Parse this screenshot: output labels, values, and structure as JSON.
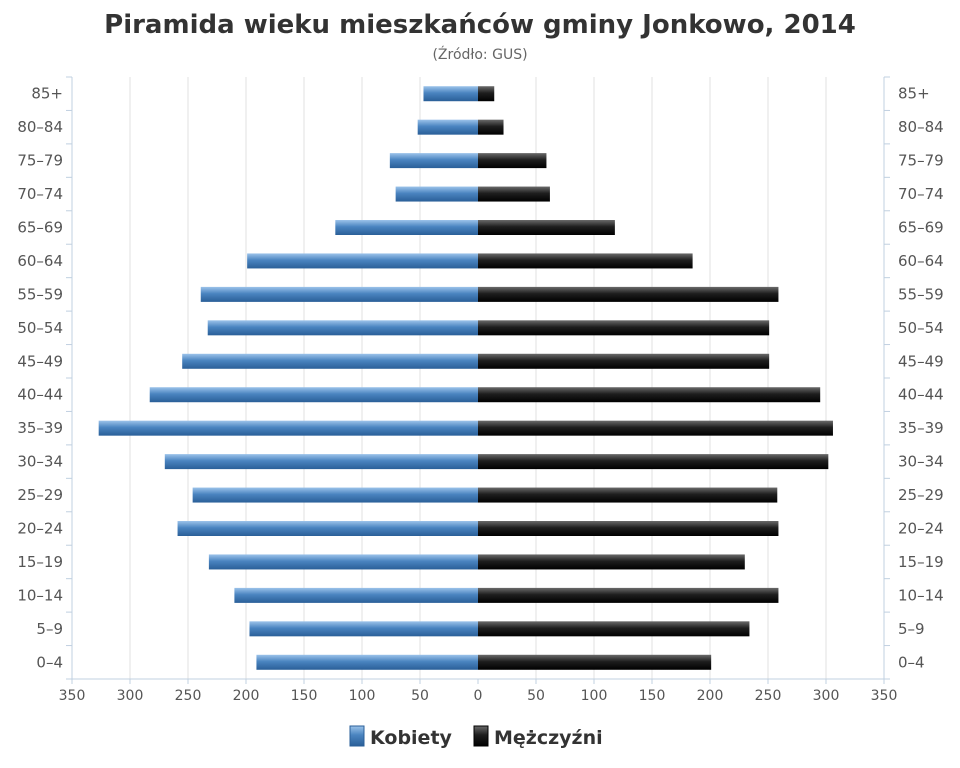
{
  "chart_data": {
    "type": "bar",
    "orientation": "horizontal-population-pyramid",
    "title": "Piramida wieku mieszkańców gminy Jonkowo, 2014",
    "subtitle": "(Źródło: GUS)",
    "categories": [
      "0–4",
      "5–9",
      "10–14",
      "15–19",
      "20–24",
      "25–29",
      "30–34",
      "35–39",
      "40–44",
      "45–49",
      "50–54",
      "55–59",
      "60–64",
      "65–69",
      "70–74",
      "75–79",
      "80–84",
      "85+"
    ],
    "series": [
      {
        "name": "Kobiety",
        "side": "left",
        "color": "#4a84c0",
        "values": [
          191,
          197,
          210,
          232,
          259,
          246,
          270,
          327,
          283,
          255,
          233,
          239,
          199,
          123,
          71,
          76,
          52,
          47
        ]
      },
      {
        "name": "Mężczyźni",
        "side": "right",
        "color": "#1e1e1e",
        "values": [
          201,
          234,
          259,
          230,
          259,
          258,
          302,
          306,
          295,
          251,
          251,
          259,
          185,
          118,
          62,
          59,
          22,
          14
        ]
      }
    ],
    "xlim": [
      -350,
      350
    ],
    "x_ticks": [
      "350",
      "300",
      "250",
      "200",
      "150",
      "100",
      "50",
      "0",
      "50",
      "100",
      "150",
      "200",
      "250",
      "300",
      "350"
    ],
    "grid": true,
    "legend_position": "bottom-center"
  }
}
